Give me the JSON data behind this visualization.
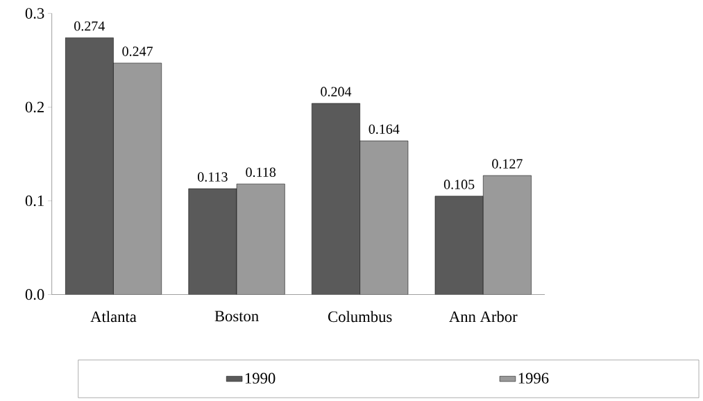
{
  "chart_data": {
    "type": "bar",
    "categories": [
      "Atlanta",
      "Boston",
      "Columbus",
      "Ann Arbor"
    ],
    "series": [
      {
        "name": "1990",
        "color": "#5a5a5a",
        "values": [
          0.274,
          0.113,
          0.204,
          0.105
        ]
      },
      {
        "name": "1996",
        "color": "#9a9a9a",
        "values": [
          0.247,
          0.118,
          0.164,
          0.127
        ]
      }
    ],
    "ylim": [
      0,
      0.3
    ],
    "yticks": [
      {
        "value": 0,
        "label": "0.0"
      },
      0.1,
      0.2,
      0.3
    ],
    "data_labels": true,
    "legend": "bottom",
    "grid": false
  }
}
